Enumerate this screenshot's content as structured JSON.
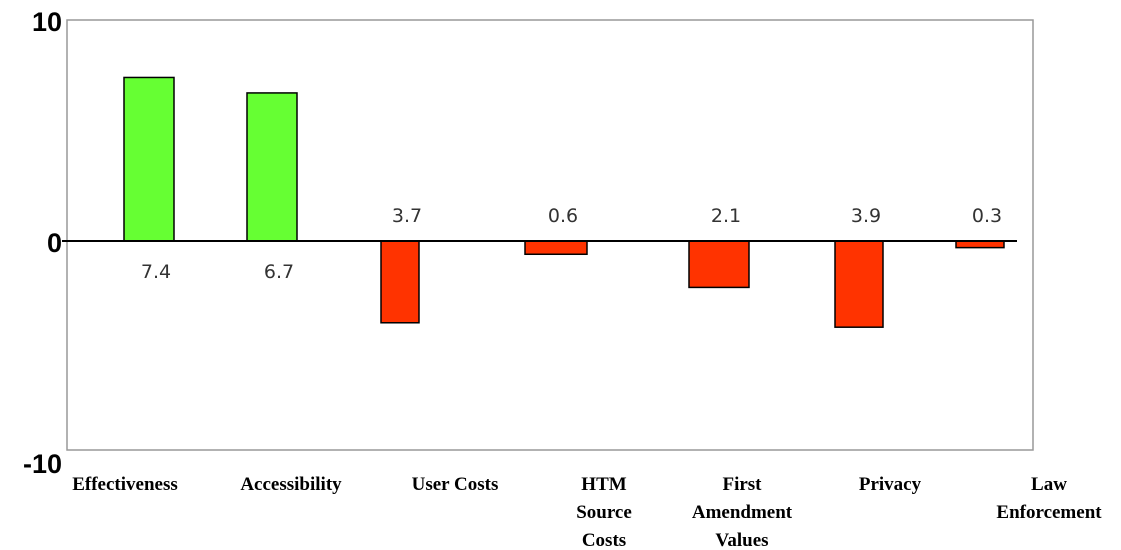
{
  "chart_data": {
    "type": "bar",
    "categories": [
      "Effectiveness",
      "Accessibility",
      "User Costs",
      "HTM Source Costs",
      "First Amendment Values",
      "Privacy",
      "Law Enforcement"
    ],
    "category_label_lines": [
      [
        "Effectiveness"
      ],
      [
        "Accessibility"
      ],
      [
        "User Costs"
      ],
      [
        "HTM",
        "Source",
        "Costs"
      ],
      [
        "First",
        "Amendment",
        "Values"
      ],
      [
        "Privacy"
      ],
      [
        "Law",
        "Enforcement"
      ]
    ],
    "values": [
      7.4,
      6.7,
      -3.7,
      -0.6,
      -2.1,
      -3.9,
      -0.3
    ],
    "data_labels": [
      "7.4",
      "6.7",
      "3.7",
      "0.6",
      "2.1",
      "3.9",
      "0.3"
    ],
    "ylim": [
      -10,
      10
    ],
    "yticks": [
      "10",
      "0",
      "-10"
    ],
    "title": "",
    "xlabel": "",
    "ylabel": "",
    "grid": false,
    "colors": {
      "positive": "#66ff33",
      "negative": "#ff3300",
      "bar_border": "#000000",
      "frame": "#999999",
      "zero_line": "#000000"
    }
  }
}
